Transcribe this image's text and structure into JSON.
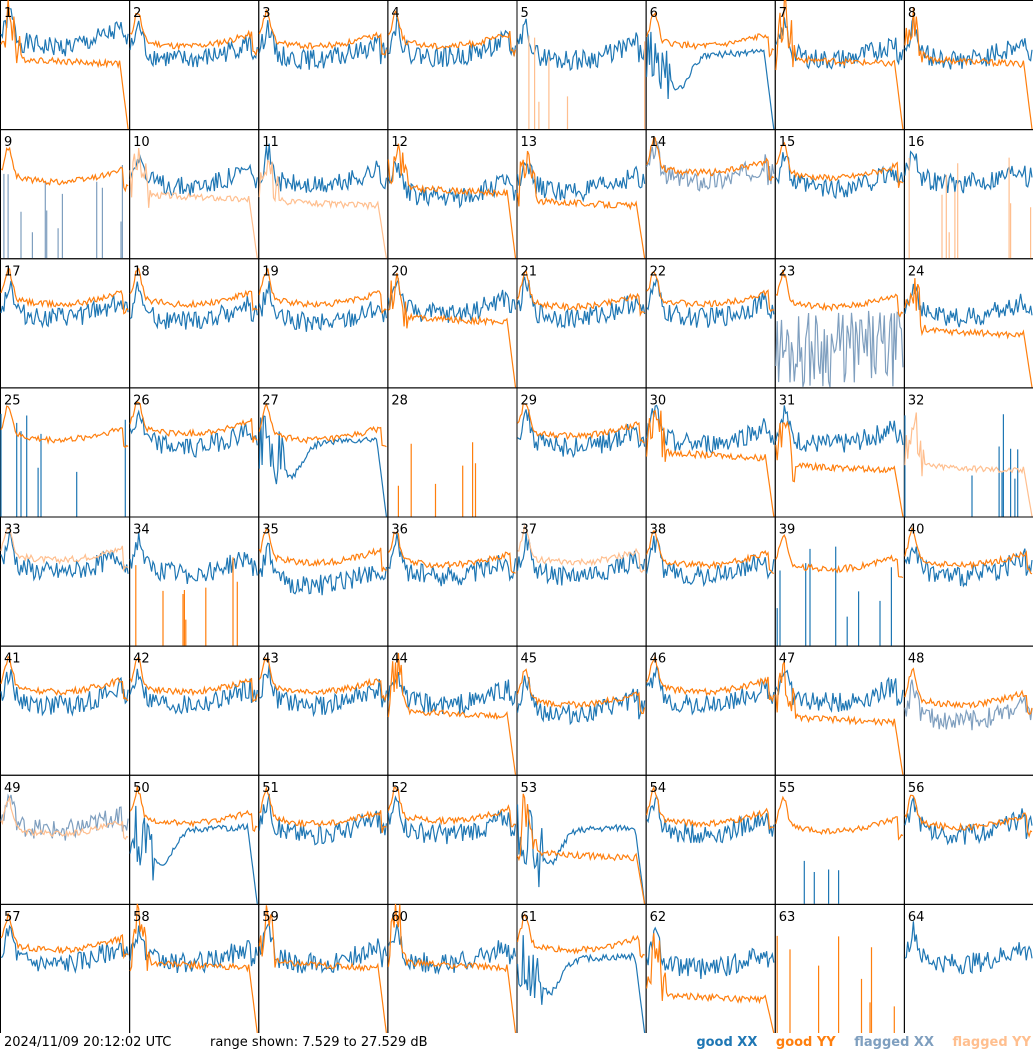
{
  "colors": {
    "good_xx": "#1f77b4",
    "good_yy": "#ff7f0e",
    "flagged_xx": "#7f9fbf",
    "flagged_yy": "#ffbf8f",
    "border": "#000000"
  },
  "footer": {
    "timestamp": "2024/11/09 20:12:02 UTC",
    "range": "range shown: 7.529 to 27.529 dB"
  },
  "legend": [
    {
      "label": "good XX",
      "color": "#1f77b4"
    },
    {
      "label": "good YY",
      "color": "#ff7f0e"
    },
    {
      "label": "flagged XX",
      "color": "#7f9fbf"
    },
    {
      "label": "flagged YY",
      "color": "#ffbf8f"
    }
  ],
  "chart_data": {
    "type": "line",
    "layout": "8x8 small multiples",
    "y_range_db": [
      7.529,
      27.529
    ],
    "series_names": [
      "good XX",
      "good YY",
      "flagged XX",
      "flagged YY"
    ],
    "panels": [
      {
        "id": "1",
        "xx": "good",
        "yy": "good",
        "xx_shape": "normal",
        "yy_shape": "peak-droop",
        "xx_level": 0.72,
        "yy_level": 0.55
      },
      {
        "id": "2",
        "xx": "good",
        "yy": "good",
        "xx_shape": "normal",
        "yy_shape": "smooth",
        "xx_level": 0.62,
        "yy_level": 0.7
      },
      {
        "id": "3",
        "xx": "good",
        "yy": "good",
        "xx_shape": "normal",
        "yy_shape": "smooth",
        "xx_level": 0.62,
        "yy_level": 0.7
      },
      {
        "id": "4",
        "xx": "good",
        "yy": "good",
        "xx_shape": "normal",
        "yy_shape": "smooth",
        "xx_level": 0.64,
        "yy_level": 0.7
      },
      {
        "id": "5",
        "xx": "good",
        "yy": "flagged",
        "xx_shape": "normal",
        "yy_shape": "spikes",
        "xx_level": 0.62,
        "yy_level": 0.05
      },
      {
        "id": "6",
        "xx": "good",
        "yy": "good",
        "xx_shape": "dip",
        "yy_shape": "smooth",
        "xx_level": 0.55,
        "yy_level": 0.7
      },
      {
        "id": "7",
        "xx": "good",
        "yy": "good",
        "xx_shape": "normal",
        "yy_shape": "peak-droop",
        "xx_level": 0.62,
        "yy_level": 0.55
      },
      {
        "id": "8",
        "xx": "good",
        "yy": "good",
        "xx_shape": "normal",
        "yy_shape": "peak-droop",
        "xx_level": 0.62,
        "yy_level": 0.55
      },
      {
        "id": "9",
        "xx": "flagged",
        "yy": "good",
        "xx_shape": "spikes",
        "yy_shape": "smooth",
        "xx_level": 0.05,
        "yy_level": 0.65
      },
      {
        "id": "10",
        "xx": "good",
        "yy": "flagged",
        "xx_shape": "normal",
        "yy_shape": "peak-droop",
        "xx_level": 0.64,
        "yy_level": 0.5
      },
      {
        "id": "11",
        "xx": "good",
        "yy": "flagged",
        "xx_shape": "normal",
        "yy_shape": "peak-droop",
        "xx_level": 0.64,
        "yy_level": 0.45
      },
      {
        "id": "12",
        "xx": "good",
        "yy": "good",
        "xx_shape": "normal",
        "yy_shape": "peak-droop",
        "xx_level": 0.55,
        "yy_level": 0.55
      },
      {
        "id": "13",
        "xx": "good",
        "yy": "good",
        "xx_shape": "normal",
        "yy_shape": "peak-droop",
        "xx_level": 0.6,
        "yy_level": 0.45
      },
      {
        "id": "14",
        "xx": "flagged",
        "yy": "good",
        "xx_shape": "normal",
        "yy_shape": "smooth",
        "xx_level": 0.68,
        "yy_level": 0.72
      },
      {
        "id": "15",
        "xx": "good",
        "yy": "good",
        "xx_shape": "normal",
        "yy_shape": "smooth",
        "xx_level": 0.62,
        "yy_level": 0.68
      },
      {
        "id": "16",
        "xx": "good",
        "yy": "flagged",
        "xx_shape": "normal",
        "yy_shape": "spikes",
        "xx_level": 0.66,
        "yy_level": 0.05
      },
      {
        "id": "17",
        "xx": "good",
        "yy": "good",
        "xx_shape": "normal",
        "yy_shape": "smooth",
        "xx_level": 0.62,
        "yy_level": 0.7
      },
      {
        "id": "18",
        "xx": "good",
        "yy": "good",
        "xx_shape": "normal",
        "yy_shape": "smooth",
        "xx_level": 0.6,
        "yy_level": 0.7
      },
      {
        "id": "19",
        "xx": "good",
        "yy": "good",
        "xx_shape": "normal",
        "yy_shape": "smooth",
        "xx_level": 0.58,
        "yy_level": 0.7
      },
      {
        "id": "20",
        "xx": "good",
        "yy": "good",
        "xx_shape": "normal",
        "yy_shape": "peak-droop",
        "xx_level": 0.65,
        "yy_level": 0.55
      },
      {
        "id": "21",
        "xx": "good",
        "yy": "good",
        "xx_shape": "normal",
        "yy_shape": "smooth",
        "xx_level": 0.62,
        "yy_level": 0.68
      },
      {
        "id": "22",
        "xx": "good",
        "yy": "good",
        "xx_shape": "normal",
        "yy_shape": "smooth",
        "xx_level": 0.62,
        "yy_level": 0.7
      },
      {
        "id": "23",
        "xx": "flagged",
        "yy": "good",
        "xx_shape": "noise",
        "yy_shape": "smooth",
        "xx_level": 0.3,
        "yy_level": 0.68
      },
      {
        "id": "24",
        "xx": "good",
        "yy": "good",
        "xx_shape": "normal",
        "yy_shape": "peak-droop",
        "xx_level": 0.62,
        "yy_level": 0.45
      },
      {
        "id": "25",
        "xx": "good",
        "yy": "good",
        "xx_shape": "spikes",
        "yy_shape": "smooth",
        "xx_level": 0.05,
        "yy_level": 0.65
      },
      {
        "id": "26",
        "xx": "good",
        "yy": "good",
        "xx_shape": "normal",
        "yy_shape": "smooth",
        "xx_level": 0.62,
        "yy_level": 0.7
      },
      {
        "id": "27",
        "xx": "good",
        "yy": "good",
        "xx_shape": "dip",
        "yy_shape": "smooth",
        "xx_level": 0.55,
        "yy_level": 0.65
      },
      {
        "id": "28",
        "xx": "good",
        "yy": "good",
        "xx_shape": "none",
        "yy_shape": "spikes",
        "xx_level": 0.0,
        "yy_level": 0.05
      },
      {
        "id": "29",
        "xx": "good",
        "yy": "good",
        "xx_shape": "normal",
        "yy_shape": "smooth",
        "xx_level": 0.62,
        "yy_level": 0.68
      },
      {
        "id": "30",
        "xx": "good",
        "yy": "good",
        "xx_shape": "normal",
        "yy_shape": "peak-droop",
        "xx_level": 0.64,
        "yy_level": 0.5
      },
      {
        "id": "31",
        "xx": "good",
        "yy": "good",
        "xx_shape": "normal",
        "yy_shape": "peak-droop",
        "xx_level": 0.64,
        "yy_level": 0.4
      },
      {
        "id": "32",
        "xx": "good",
        "yy": "flagged",
        "xx_shape": "spikes",
        "yy_shape": "peak-droop",
        "xx_level": 0.05,
        "yy_level": 0.4
      },
      {
        "id": "33",
        "xx": "good",
        "yy": "flagged",
        "xx_shape": "normal",
        "yy_shape": "smooth",
        "xx_level": 0.65,
        "yy_level": 0.72
      },
      {
        "id": "34",
        "xx": "good",
        "yy": "good",
        "xx_shape": "normal",
        "yy_shape": "spikes",
        "xx_level": 0.64,
        "yy_level": 0.05
      },
      {
        "id": "35",
        "xx": "good",
        "yy": "good",
        "xx_shape": "normal",
        "yy_shape": "smooth",
        "xx_level": 0.55,
        "yy_level": 0.7
      },
      {
        "id": "36",
        "xx": "good",
        "yy": "good",
        "xx_shape": "normal",
        "yy_shape": "smooth",
        "xx_level": 0.62,
        "yy_level": 0.68
      },
      {
        "id": "37",
        "xx": "good",
        "yy": "flagged",
        "xx_shape": "normal",
        "yy_shape": "smooth",
        "xx_level": 0.62,
        "yy_level": 0.7
      },
      {
        "id": "38",
        "xx": "good",
        "yy": "good",
        "xx_shape": "normal",
        "yy_shape": "smooth",
        "xx_level": 0.62,
        "yy_level": 0.68
      },
      {
        "id": "39",
        "xx": "good",
        "yy": "good",
        "xx_shape": "spikes",
        "yy_shape": "smooth",
        "xx_level": 0.05,
        "yy_level": 0.65
      },
      {
        "id": "40",
        "xx": "good",
        "yy": "good",
        "xx_shape": "normal",
        "yy_shape": "smooth",
        "xx_level": 0.62,
        "yy_level": 0.68
      },
      {
        "id": "41",
        "xx": "good",
        "yy": "good",
        "xx_shape": "normal",
        "yy_shape": "smooth",
        "xx_level": 0.62,
        "yy_level": 0.7
      },
      {
        "id": "42",
        "xx": "good",
        "yy": "good",
        "xx_shape": "normal",
        "yy_shape": "smooth",
        "xx_level": 0.62,
        "yy_level": 0.7
      },
      {
        "id": "43",
        "xx": "good",
        "yy": "good",
        "xx_shape": "normal",
        "yy_shape": "smooth",
        "xx_level": 0.62,
        "yy_level": 0.7
      },
      {
        "id": "44",
        "xx": "good",
        "yy": "good",
        "xx_shape": "normal",
        "yy_shape": "peak-droop",
        "xx_level": 0.62,
        "yy_level": 0.5
      },
      {
        "id": "45",
        "xx": "good",
        "yy": "good",
        "xx_shape": "normal",
        "yy_shape": "smooth",
        "xx_level": 0.55,
        "yy_level": 0.6
      },
      {
        "id": "46",
        "xx": "good",
        "yy": "good",
        "xx_shape": "normal",
        "yy_shape": "smooth",
        "xx_level": 0.62,
        "yy_level": 0.7
      },
      {
        "id": "47",
        "xx": "good",
        "yy": "good",
        "xx_shape": "normal",
        "yy_shape": "peak-droop",
        "xx_level": 0.64,
        "yy_level": 0.45
      },
      {
        "id": "48",
        "xx": "flagged",
        "yy": "good",
        "xx_shape": "normal",
        "yy_shape": "smooth",
        "xx_level": 0.5,
        "yy_level": 0.6
      },
      {
        "id": "49",
        "xx": "flagged",
        "yy": "flagged",
        "xx_shape": "normal",
        "yy_shape": "smooth",
        "xx_level": 0.65,
        "yy_level": 0.6
      },
      {
        "id": "50",
        "xx": "good",
        "yy": "good",
        "xx_shape": "dip",
        "yy_shape": "smooth",
        "xx_level": 0.55,
        "yy_level": 0.68
      },
      {
        "id": "51",
        "xx": "good",
        "yy": "good",
        "xx_shape": "normal",
        "yy_shape": "smooth",
        "xx_level": 0.62,
        "yy_level": 0.68
      },
      {
        "id": "52",
        "xx": "good",
        "yy": "good",
        "xx_shape": "normal",
        "yy_shape": "smooth",
        "xx_level": 0.62,
        "yy_level": 0.7
      },
      {
        "id": "53",
        "xx": "good",
        "yy": "good",
        "xx_shape": "dip",
        "yy_shape": "peak-droop",
        "xx_level": 0.55,
        "yy_level": 0.4
      },
      {
        "id": "54",
        "xx": "good",
        "yy": "good",
        "xx_shape": "normal",
        "yy_shape": "smooth",
        "xx_level": 0.62,
        "yy_level": 0.68
      },
      {
        "id": "55",
        "xx": "good",
        "yy": "good",
        "xx_shape": "spikes",
        "yy_shape": "smooth",
        "xx_level": 0.05,
        "yy_level": 0.62
      },
      {
        "id": "56",
        "xx": "good",
        "yy": "good",
        "xx_shape": "normal",
        "yy_shape": "smooth",
        "xx_level": 0.62,
        "yy_level": 0.65
      },
      {
        "id": "57",
        "xx": "good",
        "yy": "good",
        "xx_shape": "normal",
        "yy_shape": "smooth",
        "xx_level": 0.62,
        "yy_level": 0.7
      },
      {
        "id": "58",
        "xx": "good",
        "yy": "good",
        "xx_shape": "normal",
        "yy_shape": "peak-droop",
        "xx_level": 0.62,
        "yy_level": 0.55
      },
      {
        "id": "59",
        "xx": "good",
        "yy": "good",
        "xx_shape": "normal",
        "yy_shape": "peak-droop",
        "xx_level": 0.62,
        "yy_level": 0.55
      },
      {
        "id": "60",
        "xx": "good",
        "yy": "good",
        "xx_shape": "normal",
        "yy_shape": "peak-droop",
        "xx_level": 0.62,
        "yy_level": 0.55
      },
      {
        "id": "61",
        "xx": "good",
        "yy": "good",
        "xx_shape": "dip",
        "yy_shape": "smooth",
        "xx_level": 0.55,
        "yy_level": 0.7
      },
      {
        "id": "62",
        "xx": "good",
        "yy": "good",
        "xx_shape": "normal",
        "yy_shape": "peak-droop",
        "xx_level": 0.58,
        "yy_level": 0.3
      },
      {
        "id": "63",
        "xx": "good",
        "yy": "good",
        "xx_shape": "none",
        "yy_shape": "spikes",
        "xx_level": 0.0,
        "yy_level": 0.05
      },
      {
        "id": "64",
        "xx": "good",
        "yy": "good",
        "xx_shape": "normal",
        "yy_shape": "none",
        "xx_level": 0.62,
        "yy_level": 0.0
      }
    ]
  }
}
